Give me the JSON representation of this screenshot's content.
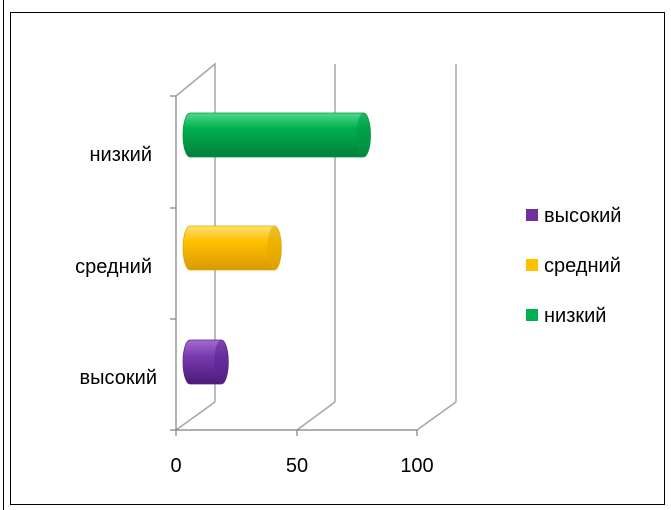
{
  "chart_data": {
    "type": "bar",
    "orientation": "horizontal",
    "style": "3d-cylinder",
    "categories": [
      "высокий",
      "средний",
      "низкий"
    ],
    "values": [
      13,
      35,
      72
    ],
    "colors": [
      "#7030a0",
      "#ffc000",
      "#00b050"
    ],
    "xlim": [
      0,
      100
    ],
    "x_ticks": [
      "0",
      "50",
      "100"
    ],
    "gridlines": true,
    "legend": {
      "position": "right",
      "entries": [
        "высокий",
        "средний",
        "низкий"
      ]
    }
  }
}
